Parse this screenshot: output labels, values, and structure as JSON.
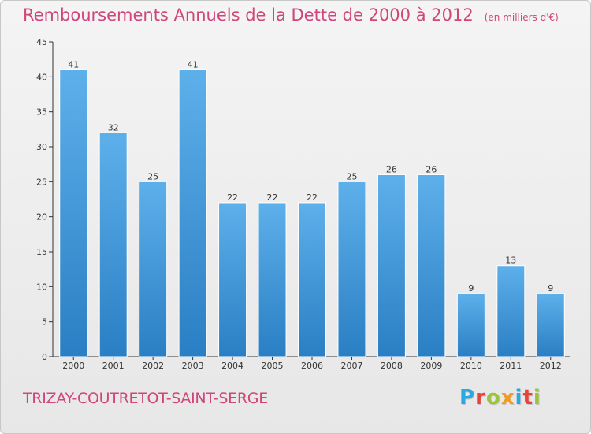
{
  "title": "Remboursements Annuels de la Dette de 2000 à 2012",
  "subtitle": "(en milliers d'€)",
  "commune": "TRIZAY-COUTRETOT-SAINT-SERGE",
  "logo": {
    "letters": [
      "P",
      "r",
      "o",
      "x",
      "i",
      "t",
      "i"
    ],
    "colors": [
      "#2aa8e0",
      "#e8423b",
      "#9bc43a",
      "#f39c1f",
      "#2aa8e0",
      "#e8423b",
      "#9bc43a"
    ]
  },
  "chart_data": {
    "type": "bar",
    "title": "Remboursements Annuels de la Dette de 2000 à 2012",
    "ylabel": "en milliers d'€",
    "categories": [
      "2000",
      "2001",
      "2002",
      "2003",
      "2004",
      "2005",
      "2006",
      "2007",
      "2008",
      "2009",
      "2010",
      "2011",
      "2012"
    ],
    "values": [
      41,
      32,
      25,
      41,
      22,
      22,
      22,
      25,
      26,
      26,
      9,
      13,
      9
    ],
    "ylim": [
      0,
      45
    ],
    "yticks": [
      0,
      5,
      10,
      15,
      20,
      25,
      30,
      35,
      40,
      45
    ],
    "grid": false,
    "bar_color": "#3f9ad9"
  }
}
